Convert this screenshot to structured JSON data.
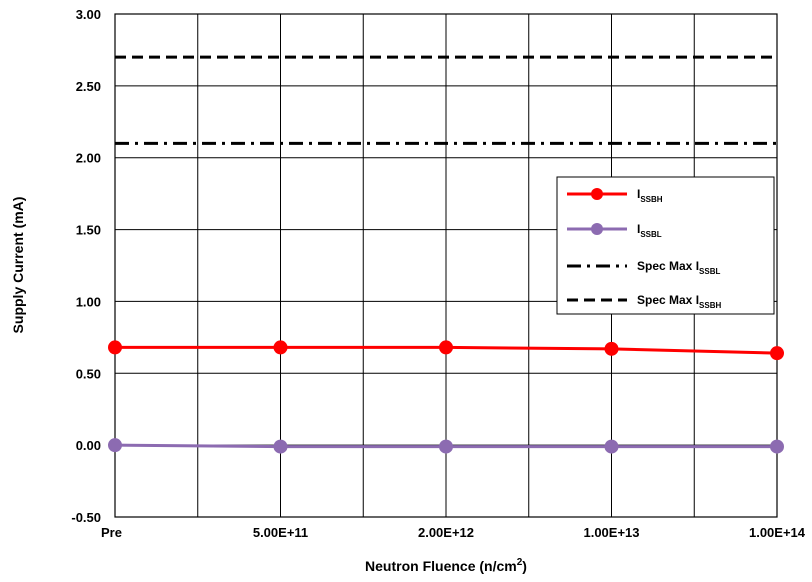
{
  "chart_data": {
    "type": "line",
    "title": "",
    "xlabel": "Neutron Fluence (n/cm",
    "xlabel_sup": "2",
    "xlabel_end": ")",
    "ylabel": "Supply Current (mA)",
    "categories": [
      "Pre",
      "",
      "5.00E+11",
      "",
      "2.00E+12",
      "",
      "1.00E+13",
      "",
      "1.00E+14"
    ],
    "ylim": [
      -0.5,
      3.0
    ],
    "yticks": [
      "3.00",
      "2.50",
      "2.00",
      "1.50",
      "1.00",
      "0.50",
      "0.00",
      "-0.50"
    ],
    "grid": true,
    "legend_position": "right",
    "series": [
      {
        "name": "I",
        "name_sub": "SSBH",
        "color": "#ff0000",
        "marker_color": "#ff0000",
        "style": "solid-marker",
        "points": [
          [
            0,
            0.68
          ],
          [
            2,
            0.68
          ],
          [
            4,
            0.68
          ],
          [
            6,
            0.67
          ],
          [
            8,
            0.64
          ]
        ]
      },
      {
        "name": "I",
        "name_sub": "SSBL",
        "color": "#8c6bb1",
        "marker_color": "#8c6bb1",
        "style": "solid-marker",
        "points": [
          [
            0,
            0.0
          ],
          [
            2,
            -0.01
          ],
          [
            4,
            -0.01
          ],
          [
            6,
            -0.01
          ],
          [
            8,
            -0.01
          ]
        ]
      },
      {
        "name": "Spec Max I",
        "name_sub": "SSBL",
        "color": "#000000",
        "style": "dashdot",
        "points": [
          [
            0,
            2.1
          ],
          [
            8,
            2.1
          ]
        ]
      },
      {
        "name": "Spec Max I",
        "name_sub": "SSBH",
        "color": "#000000",
        "style": "dashed",
        "points": [
          [
            0,
            2.7
          ],
          [
            8,
            2.7
          ]
        ]
      }
    ]
  }
}
